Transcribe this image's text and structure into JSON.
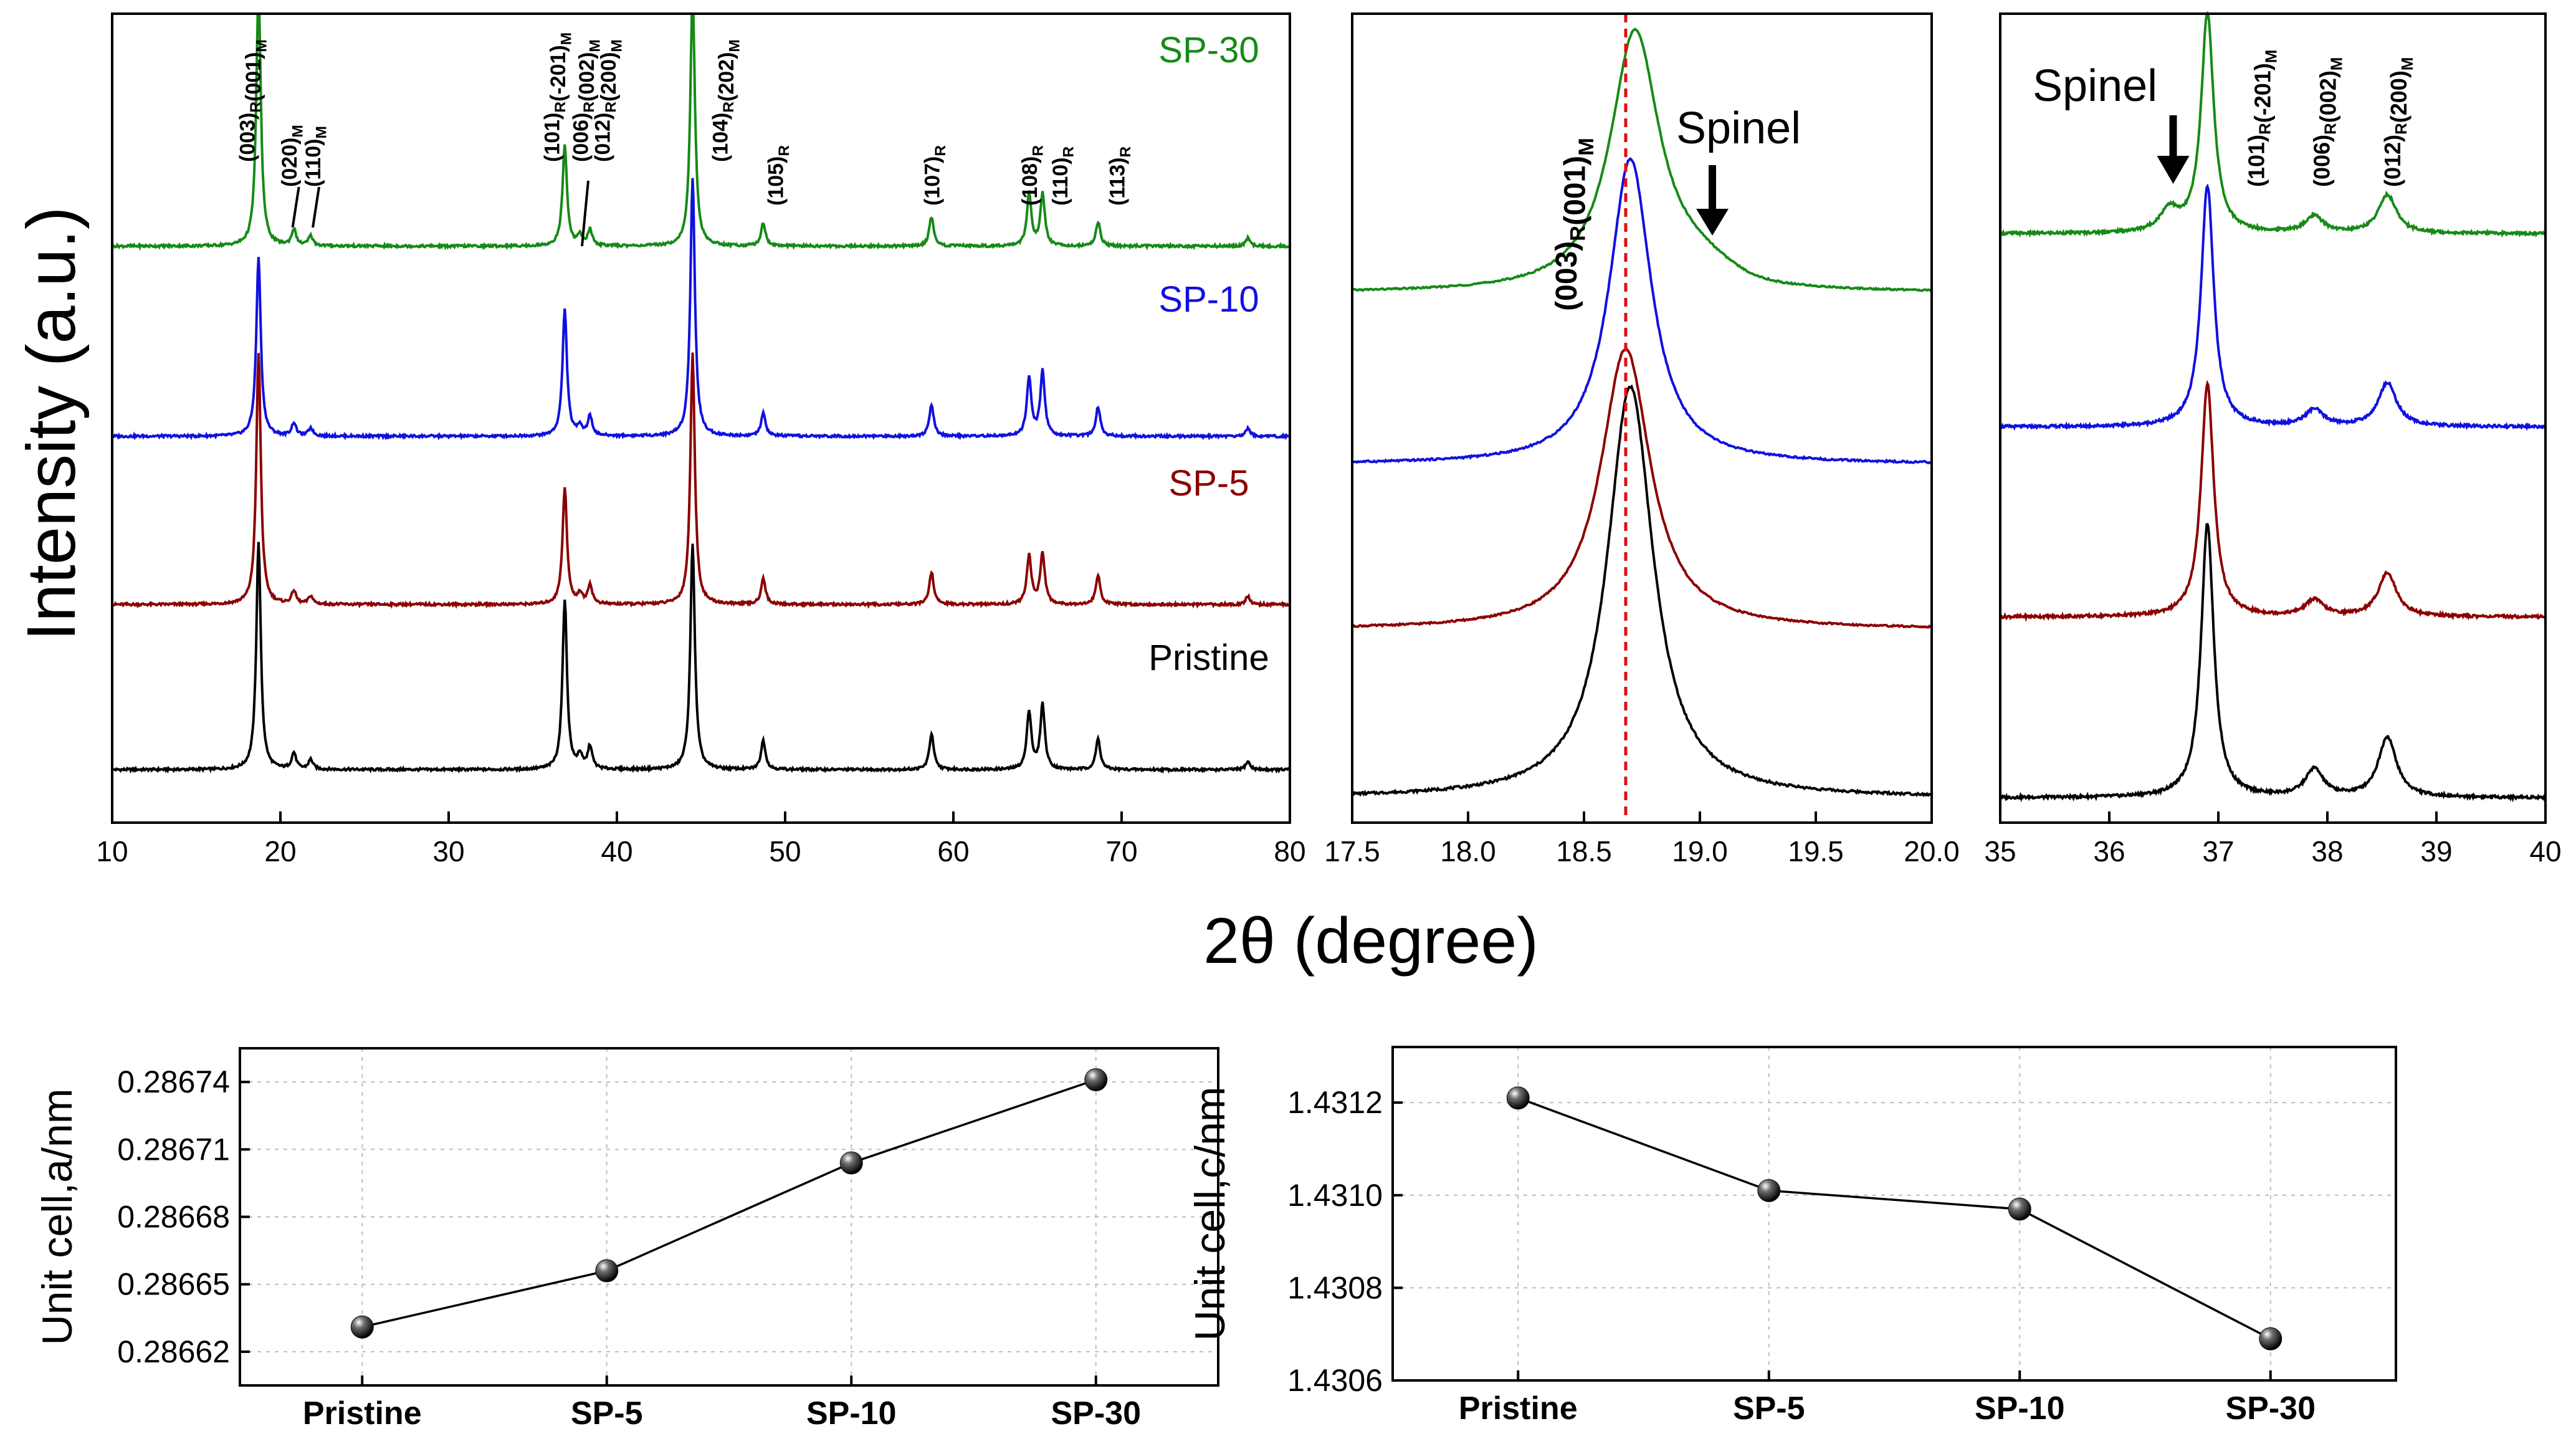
{
  "chart_data": [
    {
      "type": "line",
      "panel": "xrd-full-range",
      "title": "",
      "xlabel": "2θ (degree)",
      "ylabel": "Intensity (a.u.)",
      "xlim": [
        10,
        80
      ],
      "x_ticks": [
        10,
        20,
        30,
        40,
        50,
        60,
        70,
        80
      ],
      "y_ticks": [],
      "series": [
        {
          "name": "Pristine",
          "color": "#000000",
          "baseline": 1,
          "peak_positions": [
            18.7,
            20.8,
            21.8,
            36.9,
            37.8,
            38.4,
            44.5,
            48.7,
            58.7,
            64.5,
            65.3,
            68.6,
            77.5
          ],
          "peak_heights": [
            1.4,
            0.1,
            0.06,
            1.05,
            0.08,
            0.14,
            1.4,
            0.18,
            0.22,
            0.36,
            0.4,
            0.19,
            0.05
          ]
        },
        {
          "name": "SP-5",
          "color": "#8b0000",
          "baseline": 2,
          "peak_positions": [
            18.7,
            20.8,
            21.8,
            36.9,
            37.8,
            38.4,
            44.5,
            48.7,
            58.7,
            64.5,
            65.3,
            68.6,
            77.5
          ],
          "peak_heights": [
            1.55,
            0.08,
            0.05,
            0.72,
            0.06,
            0.12,
            1.55,
            0.16,
            0.2,
            0.3,
            0.32,
            0.18,
            0.05
          ]
        },
        {
          "name": "SP-10",
          "color": "#1010e0",
          "baseline": 3,
          "peak_positions": [
            18.7,
            20.8,
            21.8,
            36.9,
            37.8,
            38.4,
            44.5,
            48.7,
            58.7,
            64.5,
            65.3,
            68.6,
            77.5
          ],
          "peak_heights": [
            1.1,
            0.08,
            0.05,
            0.78,
            0.06,
            0.12,
            1.6,
            0.14,
            0.19,
            0.36,
            0.4,
            0.18,
            0.05
          ]
        },
        {
          "name": "SP-30",
          "color": "#168a16",
          "baseline": 4,
          "peak_positions": [
            18.7,
            20.8,
            21.8,
            36.9,
            37.8,
            38.4,
            44.5,
            48.7,
            58.7,
            64.5,
            65.3,
            68.6,
            77.5
          ],
          "peak_heights": [
            1.6,
            0.1,
            0.06,
            0.62,
            0.06,
            0.1,
            1.6,
            0.14,
            0.18,
            0.32,
            0.32,
            0.15,
            0.05
          ]
        }
      ],
      "curve_labels": [
        "SP-30",
        "SP-10",
        "SP-5",
        "Pristine"
      ],
      "peak_labels": [
        {
          "x": 18.1,
          "main": "(003)",
          "sub": "R",
          "main2": "(001)",
          "sub2": "M"
        },
        {
          "x": 20.6,
          "main": "(020)",
          "sub": "M",
          "main2": "",
          "sub2": ""
        },
        {
          "x": 22.0,
          "main": "(110)",
          "sub": "M",
          "main2": "",
          "sub2": ""
        },
        {
          "x": 36.2,
          "main": "(101)",
          "sub": "R",
          "main2": "(-201)",
          "sub2": "M"
        },
        {
          "x": 37.9,
          "main": "(006)",
          "sub": "R",
          "main2": "(002)",
          "sub2": "M"
        },
        {
          "x": 39.2,
          "main": "(012)",
          "sub": "R",
          "main2": "(200)",
          "sub2": "M"
        },
        {
          "x": 46.2,
          "main": "(104)",
          "sub": "R",
          "main2": "(202)",
          "sub2": "M"
        },
        {
          "x": 49.5,
          "main": "(105)",
          "sub": "R",
          "main2": "",
          "sub2": ""
        },
        {
          "x": 58.8,
          "main": "(107)",
          "sub": "R",
          "main2": "",
          "sub2": ""
        },
        {
          "x": 64.6,
          "main": "(108)",
          "sub": "R",
          "main2": "",
          "sub2": ""
        },
        {
          "x": 66.4,
          "main": "(110)",
          "sub": "R",
          "main2": "",
          "sub2": ""
        },
        {
          "x": 69.8,
          "main": "(113)",
          "sub": "R",
          "main2": "",
          "sub2": ""
        }
      ]
    },
    {
      "type": "line",
      "panel": "xrd-zoom-18-20",
      "xlim": [
        17.5,
        20.0
      ],
      "x_ticks": [
        17.5,
        18.0,
        18.5,
        19.0,
        19.5,
        20.0
      ],
      "reference_line_x": 18.68,
      "peak_label": {
        "main": "(003)",
        "sub": "R",
        "main2": "(001)",
        "sub2": "M"
      },
      "spinel_label": "Spinel",
      "spinel_arrow_x": 19.0,
      "series": [
        {
          "name": "Pristine",
          "center": 18.7,
          "height": 1.0,
          "width": 0.12
        },
        {
          "name": "SP-5",
          "center": 18.68,
          "height": 0.7,
          "width": 0.13
        },
        {
          "name": "SP-10",
          "center": 18.7,
          "height": 0.75,
          "width": 0.11
        },
        {
          "name": "SP-30",
          "center": 18.72,
          "height": 0.62,
          "width": 0.13
        }
      ]
    },
    {
      "type": "line",
      "panel": "xrd-zoom-35-40",
      "xlim": [
        35,
        40
      ],
      "x_ticks": [
        35,
        36,
        37,
        38,
        39,
        40
      ],
      "spinel_label": "Spinel",
      "spinel_arrow_x": 36.5,
      "peak_labels": [
        {
          "x": 37.35,
          "main": "(101)",
          "sub": "R",
          "main2": "(-201)",
          "sub2": "M"
        },
        {
          "x": 37.95,
          "main": "(006)",
          "sub": "R",
          "main2": "(002)",
          "sub2": "M"
        },
        {
          "x": 38.6,
          "main": "(012)",
          "sub": "R",
          "main2": "(200)",
          "sub2": "M"
        }
      ],
      "series": [
        {
          "name": "Pristine",
          "peaks": [
            {
              "x": 36.9,
              "h": 1.0
            },
            {
              "x": 37.88,
              "h": 0.1
            },
            {
              "x": 38.55,
              "h": 0.22
            }
          ]
        },
        {
          "name": "SP-5",
          "peaks": [
            {
              "x": 36.9,
              "h": 0.85
            },
            {
              "x": 37.88,
              "h": 0.06
            },
            {
              "x": 38.55,
              "h": 0.16
            }
          ]
        },
        {
          "name": "SP-10",
          "peaks": [
            {
              "x": 36.9,
              "h": 0.88
            },
            {
              "x": 37.88,
              "h": 0.06
            },
            {
              "x": 38.55,
              "h": 0.16
            }
          ]
        },
        {
          "name": "SP-30",
          "peaks": [
            {
              "x": 36.9,
              "h": 0.8
            },
            {
              "x": 36.55,
              "h": 0.08
            },
            {
              "x": 37.88,
              "h": 0.06
            },
            {
              "x": 38.55,
              "h": 0.14
            }
          ]
        }
      ]
    },
    {
      "type": "line",
      "panel": "unit-cell-a",
      "title": "",
      "xlabel": "",
      "ylabel": "Unit cell,a/nm",
      "categories": [
        "Pristine",
        "SP-5",
        "SP-10",
        "SP-30"
      ],
      "values": [
        0.286631,
        0.286656,
        0.286704,
        0.286741
      ],
      "ylim": [
        0.286605,
        0.286755
      ],
      "y_ticks": [
        0.28662,
        0.28665,
        0.28668,
        0.28671,
        0.28674
      ],
      "y_tick_labels": [
        "0.28662",
        "0.28665",
        "0.28668",
        "0.28671",
        "0.28674"
      ],
      "grid": true
    },
    {
      "type": "line",
      "panel": "unit-cell-c",
      "title": "",
      "xlabel": "",
      "ylabel": "Unit cell,c/nm",
      "categories": [
        "Pristine",
        "SP-5",
        "SP-10",
        "SP-30"
      ],
      "values": [
        1.43121,
        1.43101,
        1.43097,
        1.43069
      ],
      "ylim": [
        1.4306,
        1.43132
      ],
      "y_ticks": [
        1.4306,
        1.4308,
        1.431,
        1.4312
      ],
      "y_tick_labels": [
        "1.4306",
        "1.4308",
        "1.4310",
        "1.4312"
      ],
      "grid": true
    }
  ]
}
